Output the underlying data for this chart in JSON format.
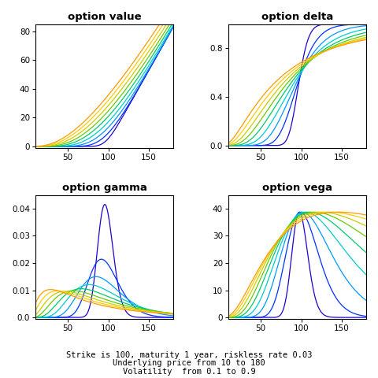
{
  "title_value": "option value",
  "title_delta": "option delta",
  "title_gamma": "option gamma",
  "title_vega": "option vega",
  "K": 100,
  "T": 1,
  "r": 0.03,
  "S_min": 10,
  "S_max": 180,
  "sigma_min": 0.1,
  "sigma_max": 0.9,
  "n_sigma": 9,
  "n_S": 400,
  "footer_line1": "Strike is 100, maturity 1 year, riskless rate 0.03",
  "footer_line2": "Underlying price from 10 to 180",
  "footer_line3": "Volatility  from 0.1 to 0.9",
  "ylim_value": [
    -1,
    85
  ],
  "ylim_delta": [
    -0.02,
    1.0
  ],
  "ylim_gamma": [
    -0.0005,
    0.045
  ],
  "ylim_vega": [
    -0.5,
    45
  ],
  "yticks_value": [
    0,
    20,
    40,
    60,
    80
  ],
  "yticks_delta": [
    0.0,
    0.4,
    0.8
  ],
  "yticks_gamma": [
    0.0,
    0.01,
    0.02,
    0.03,
    0.04
  ],
  "yticks_vega": [
    0,
    10,
    20,
    30,
    40
  ],
  "xticks": [
    50,
    100,
    150
  ],
  "xlim": [
    10,
    180
  ]
}
